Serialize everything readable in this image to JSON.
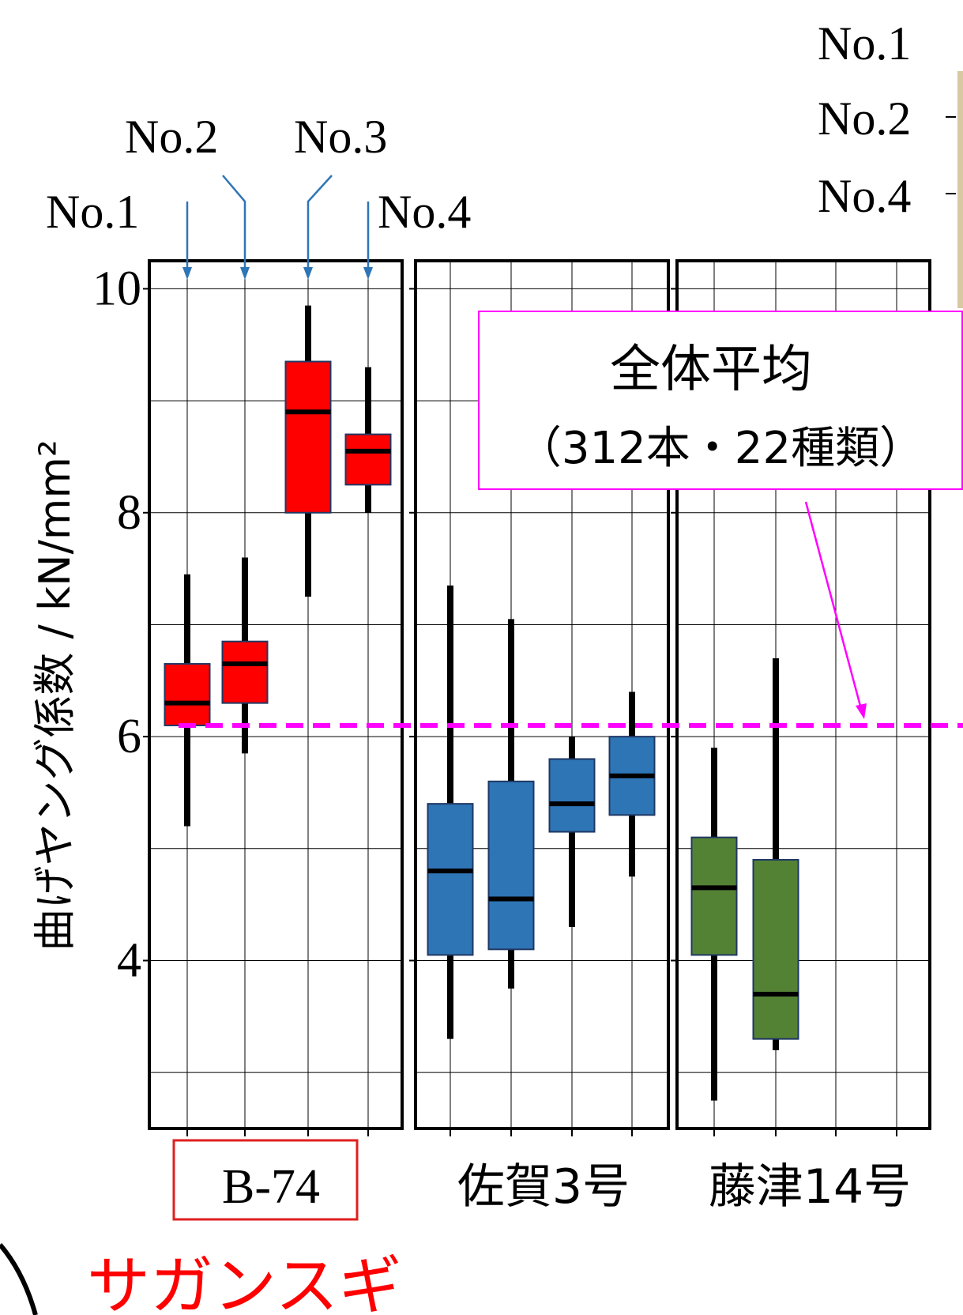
{
  "chart_data": {
    "type": "boxplot",
    "ylabel": "曲げヤング係数 / kN/mm²",
    "ylim": [
      2.5,
      10.25
    ],
    "yticks": [
      4,
      6,
      8,
      10
    ],
    "grid": true,
    "panels": [
      {
        "group_label": "B-74",
        "group_label_boxed": true,
        "color": "#ff0000",
        "boxes": [
          {
            "name": "No.1",
            "whisker_low": 5.2,
            "q1": 6.1,
            "median": 6.3,
            "q3": 6.65,
            "whisker_high": 7.45
          },
          {
            "name": "No.2",
            "whisker_low": 5.85,
            "q1": 6.3,
            "median": 6.65,
            "q3": 6.85,
            "whisker_high": 7.6
          },
          {
            "name": "No.3",
            "whisker_low": 7.25,
            "q1": 8.0,
            "median": 8.9,
            "q3": 9.35,
            "whisker_high": 9.85
          },
          {
            "name": "No.4",
            "whisker_low": 8.0,
            "q1": 8.25,
            "median": 8.55,
            "q3": 8.7,
            "whisker_high": 9.3
          }
        ]
      },
      {
        "group_label": "佐賀3号",
        "color": "#2e75b6",
        "boxes": [
          {
            "whisker_low": 3.3,
            "q1": 4.05,
            "median": 4.8,
            "q3": 5.4,
            "whisker_high": 7.35
          },
          {
            "whisker_low": 3.75,
            "q1": 4.1,
            "median": 4.55,
            "q3": 5.6,
            "whisker_high": 7.05
          },
          {
            "whisker_low": 4.3,
            "q1": 5.15,
            "median": 5.4,
            "q3": 5.8,
            "whisker_high": 6.0
          },
          {
            "whisker_low": 4.75,
            "q1": 5.3,
            "median": 5.65,
            "q3": 6.0,
            "whisker_high": 6.4
          }
        ]
      },
      {
        "group_label": "藤津14号",
        "color": "#548235",
        "boxes": [
          {
            "whisker_low": 2.75,
            "q1": 4.05,
            "median": 4.65,
            "q3": 5.1,
            "whisker_high": 5.9
          },
          {
            "whisker_low": 3.2,
            "q1": 3.3,
            "median": 3.7,
            "q3": 4.9,
            "whisker_high": 6.7
          }
        ]
      }
    ],
    "reference_line": {
      "value": 6.1,
      "color": "#ff00ff",
      "style": "dashed"
    },
    "annotation": {
      "line1": "全体平均",
      "line2": "（312本・22種類）"
    },
    "top_labels": {
      "no1": "No.1",
      "no2": "No.2",
      "no3": "No.3",
      "no4": "No.4"
    },
    "right_edge_labels": [
      "No.1",
      "No.2",
      "No.4"
    ],
    "footer_text": "サガンスギ"
  }
}
